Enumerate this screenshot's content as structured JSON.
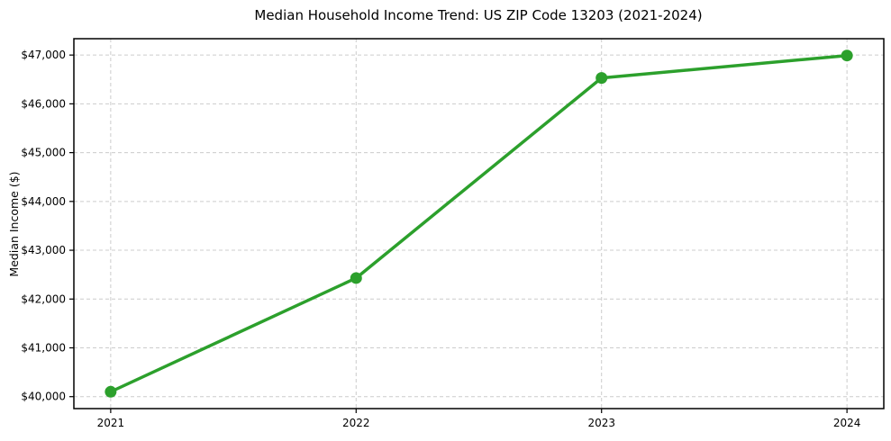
{
  "figure": {
    "background": "#ffffff"
  },
  "chart_data": {
    "type": "line",
    "title": "Median Household Income Trend: US ZIP Code 13203 (2021-2024)",
    "xlabel": "",
    "ylabel": "Median Income ($)",
    "categories": [
      "2021",
      "2022",
      "2023",
      "2024"
    ],
    "series": [
      {
        "name": "Median Household Income",
        "values": [
          40100,
          42430,
          46530,
          46990
        ],
        "color": "#2ca02c",
        "marker": "circle"
      }
    ],
    "yticks": [
      {
        "value": 40000,
        "label": "$40,000"
      },
      {
        "value": 41000,
        "label": "$41,000"
      },
      {
        "value": 42000,
        "label": "$42,000"
      },
      {
        "value": 43000,
        "label": "$43,000"
      },
      {
        "value": 44000,
        "label": "$44,000"
      },
      {
        "value": 45000,
        "label": "$45,000"
      },
      {
        "value": 46000,
        "label": "$46,000"
      },
      {
        "value": 47000,
        "label": "$47,000"
      }
    ],
    "ylim": [
      39755,
      47335
    ],
    "grid": true,
    "grid_line_style": "dashed",
    "legend_position": "none"
  },
  "style": {
    "accent_color": "#2ca02c",
    "grid_color": "#cccccc",
    "axis_color": "#000000",
    "text_color": "#000000",
    "background": "#ffffff"
  }
}
